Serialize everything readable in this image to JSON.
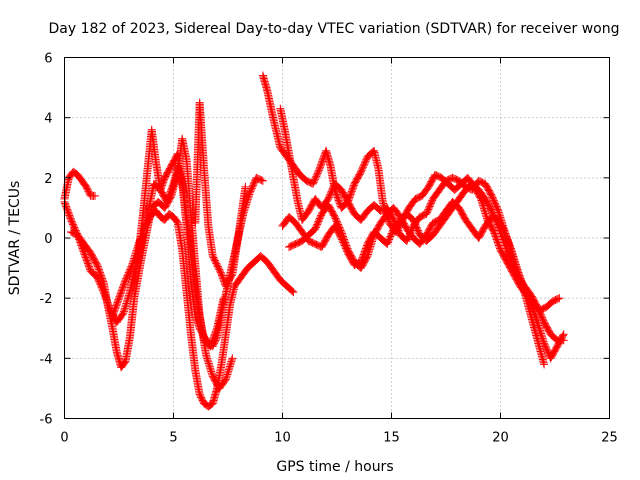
{
  "chart_data": {
    "type": "scatter",
    "title": "Day 182 of 2023, Sidereal Day-to-day VTEC variation (SDTVAR) for receiver wong",
    "xlabel": "GPS time / hours",
    "ylabel": "SDTVAR / TECUs",
    "xlim": [
      0,
      25
    ],
    "ylim": [
      -6,
      6
    ],
    "x_ticks": [
      0,
      5,
      10,
      15,
      20,
      25
    ],
    "y_ticks": [
      -6,
      -4,
      -2,
      0,
      2,
      4,
      6
    ],
    "x_tick_labels": [
      "0",
      "5",
      "10",
      "15",
      "20",
      "25"
    ],
    "y_tick_labels": [
      "-6",
      "-4",
      "-2",
      "0",
      "2",
      "4",
      "6"
    ],
    "grid": true,
    "legend": "none",
    "marker": "+",
    "color": "#ff0000",
    "tracks": [
      {
        "x": [
          0.0,
          0.2,
          0.4,
          0.6,
          0.8,
          1.0,
          1.2,
          1.4
        ],
        "y": [
          1.3,
          2.0,
          2.2,
          2.1,
          1.9,
          1.7,
          1.4,
          1.4
        ]
      },
      {
        "x": [
          0.0,
          0.3,
          0.6,
          0.9,
          1.2,
          1.5,
          1.8,
          2.1,
          2.4,
          2.7,
          3.0,
          3.3,
          3.6,
          3.9,
          4.1,
          4.4,
          4.7,
          5.0,
          5.2,
          5.4,
          5.6,
          5.8,
          6.0,
          6.2,
          6.5,
          6.8,
          7.0,
          7.3,
          7.6,
          7.9,
          8.2,
          8.5,
          8.8,
          9.1
        ],
        "y": [
          1.2,
          0.6,
          0.1,
          -0.5,
          -1.1,
          -1.3,
          -1.8,
          -2.4,
          -2.8,
          -2.5,
          -1.8,
          -0.8,
          0.1,
          1.1,
          1.8,
          1.6,
          1.2,
          1.8,
          2.4,
          1.8,
          0.4,
          -1.5,
          -2.6,
          -3.0,
          -3.4,
          -3.6,
          -3.3,
          -2.2,
          -1.2,
          -0.2,
          0.8,
          1.5,
          2.0,
          1.9
        ]
      },
      {
        "x": [
          0.3,
          0.6,
          0.9,
          1.2,
          1.5,
          1.8,
          2.0,
          2.2,
          2.4,
          2.6,
          2.8,
          3.0,
          3.2,
          3.5,
          3.8,
          4.0,
          4.3,
          4.6,
          4.9,
          5.2,
          5.4,
          5.6,
          5.8,
          6.0,
          6.2,
          6.5,
          6.8,
          7.1,
          7.4,
          7.7
        ],
        "y": [
          0.2,
          0.1,
          -0.2,
          -0.5,
          -0.9,
          -1.5,
          -2.3,
          -3.0,
          -3.8,
          -4.3,
          -4.1,
          -3.3,
          -2.0,
          -0.8,
          0.3,
          1.0,
          1.2,
          1.0,
          1.4,
          2.2,
          3.3,
          2.6,
          0.8,
          -0.9,
          -2.6,
          -3.9,
          -4.6,
          -5.0,
          -4.7,
          -4.0
        ]
      },
      {
        "x": [
          2.2,
          2.5,
          2.8,
          3.1,
          3.4,
          3.7,
          4.0,
          4.2,
          4.4,
          4.6,
          4.8,
          5.0,
          5.2,
          5.4,
          5.6,
          5.8,
          6.0,
          6.2,
          6.4,
          6.6,
          6.8,
          7.0,
          7.2,
          7.4,
          7.6,
          7.8,
          8.1,
          8.4,
          8.7,
          9.0,
          9.3,
          9.6,
          9.9,
          10.2,
          10.5
        ],
        "y": [
          -2.6,
          -2.0,
          -1.4,
          -0.9,
          -0.2,
          0.4,
          0.8,
          0.9,
          0.7,
          0.6,
          0.8,
          0.7,
          0.5,
          -0.4,
          -1.8,
          -3.2,
          -4.4,
          -5.2,
          -5.5,
          -5.6,
          -5.5,
          -5.0,
          -4.2,
          -3.2,
          -2.2,
          -1.6,
          -1.3,
          -1.0,
          -0.8,
          -0.6,
          -0.8,
          -1.1,
          -1.4,
          -1.6,
          -1.8
        ]
      },
      {
        "x": [
          3.2,
          3.4,
          3.6,
          3.8,
          4.0,
          4.2,
          4.4,
          4.6,
          4.9,
          5.2,
          5.5,
          5.8,
          6.1,
          6.4,
          6.7,
          7.0,
          7.3
        ],
        "y": [
          -1.5,
          -0.5,
          0.8,
          2.2,
          3.6,
          2.5,
          1.6,
          2.0,
          2.4,
          2.8,
          1.4,
          -0.6,
          -2.2,
          -3.4,
          -3.6,
          -3.0,
          -2.0
        ]
      },
      {
        "x": [
          6.0,
          6.1,
          6.2,
          6.4,
          6.6,
          6.8,
          7.0,
          7.2,
          7.4,
          7.7,
          8.0,
          8.3
        ],
        "y": [
          0.5,
          2.5,
          4.5,
          2.3,
          0.4,
          -0.6,
          -0.9,
          -1.2,
          -1.6,
          -1.2,
          0.2,
          1.7
        ]
      },
      {
        "x": [
          9.1,
          9.3,
          9.6,
          9.9,
          10.2,
          10.5,
          10.8,
          11.1,
          11.4,
          11.7,
          12.0,
          12.2,
          12.4,
          12.7,
          13.0,
          13.3,
          13.6,
          13.9,
          14.2,
          14.4,
          14.6,
          14.9,
          15.2,
          15.5,
          15.8,
          16.1,
          16.4,
          16.7,
          17.0,
          17.3,
          17.6,
          17.9,
          18.2,
          18.5,
          18.8,
          19.1,
          19.4,
          19.7,
          20.0,
          20.3,
          20.6,
          20.9,
          21.2,
          21.5,
          21.8,
          22.1,
          22.4,
          22.7
        ],
        "y": [
          5.4,
          4.9,
          3.9,
          3.0,
          2.7,
          2.4,
          2.1,
          1.9,
          1.8,
          2.3,
          2.9,
          2.4,
          1.6,
          1.0,
          1.2,
          1.8,
          2.2,
          2.7,
          2.9,
          2.3,
          1.2,
          0.5,
          0.2,
          0.6,
          1.0,
          1.3,
          1.4,
          1.7,
          2.1,
          2.0,
          1.8,
          1.6,
          1.8,
          2.0,
          1.7,
          1.3,
          0.6,
          0.2,
          -0.4,
          -0.8,
          -1.2,
          -1.6,
          -1.9,
          -2.2,
          -2.4,
          -2.3,
          -2.1,
          -2.0
        ]
      },
      {
        "x": [
          9.9,
          10.1,
          10.3,
          10.5,
          10.7,
          10.9,
          11.2,
          11.5,
          11.8,
          12.1,
          12.4,
          12.7,
          13.0,
          13.3,
          13.6,
          13.9,
          14.2,
          14.5,
          14.8,
          15.1,
          15.4,
          15.7,
          16.0,
          16.3,
          16.6,
          16.9,
          17.2,
          17.5,
          17.8,
          18.1,
          18.4,
          18.7,
          19.0,
          19.3,
          19.6,
          19.9,
          20.2,
          20.5,
          20.8,
          21.1,
          21.4,
          21.7,
          22.0
        ],
        "y": [
          4.3,
          3.6,
          2.8,
          2.0,
          1.2,
          0.6,
          0.9,
          1.3,
          1.0,
          1.3,
          1.8,
          1.6,
          1.2,
          0.8,
          0.6,
          0.9,
          1.1,
          0.9,
          1.0,
          0.6,
          0.1,
          -0.1,
          0.4,
          0.7,
          0.8,
          1.3,
          1.6,
          1.9,
          2.0,
          1.9,
          1.7,
          1.6,
          1.9,
          1.8,
          1.4,
          0.9,
          0.2,
          -0.5,
          -1.2,
          -1.8,
          -2.6,
          -3.4,
          -4.2
        ]
      },
      {
        "x": [
          10.0,
          10.3,
          10.6,
          10.9,
          11.2,
          11.5,
          11.8,
          12.1,
          12.4,
          12.7,
          13.0,
          13.3,
          13.6,
          13.9,
          14.2,
          14.5,
          14.8,
          15.1,
          15.4,
          15.7,
          16.0,
          16.3,
          16.6,
          16.9,
          17.2,
          17.5,
          17.8,
          18.1,
          18.4,
          18.7,
          19.0,
          19.3,
          19.6,
          19.9,
          20.2,
          20.5,
          20.8,
          21.1,
          21.4,
          21.7,
          22.0,
          22.3,
          22.6,
          22.9
        ],
        "y": [
          0.4,
          0.7,
          0.5,
          0.2,
          -0.1,
          -0.2,
          -0.3,
          0.1,
          0.4,
          0.0,
          -0.5,
          -0.9,
          -0.8,
          -0.2,
          0.2,
          0.0,
          -0.2,
          0.3,
          0.6,
          0.8,
          0.6,
          0.1,
          -0.1,
          0.1,
          0.4,
          0.7,
          1.0,
          1.3,
          1.6,
          1.8,
          1.6,
          1.3,
          0.9,
          0.4,
          -0.2,
          -0.8,
          -1.3,
          -1.6,
          -1.9,
          -2.3,
          -2.8,
          -3.2,
          -3.4,
          -3.4
        ]
      },
      {
        "x": [
          10.3,
          10.6,
          10.9,
          11.2,
          11.5,
          11.8,
          12.1,
          12.4,
          12.7,
          13.0,
          13.3,
          13.6,
          13.9,
          14.2,
          14.5,
          14.8,
          15.1,
          15.4,
          15.7,
          16.0,
          16.3,
          16.6,
          16.9,
          17.2,
          17.5,
          17.8,
          18.1,
          18.4,
          18.7,
          19.0,
          19.3,
          19.6,
          19.9,
          20.2,
          20.5,
          20.8,
          21.1,
          21.4,
          21.7,
          22.0,
          22.3,
          22.6,
          22.9
        ],
        "y": [
          -0.3,
          -0.2,
          -0.1,
          0.1,
          0.3,
          0.8,
          1.1,
          0.7,
          0.2,
          -0.4,
          -0.8,
          -1.0,
          -0.6,
          0.1,
          0.5,
          0.8,
          1.0,
          0.7,
          0.3,
          0.0,
          -0.2,
          0.1,
          0.5,
          0.6,
          0.9,
          1.2,
          1.0,
          0.6,
          0.3,
          0.0,
          0.4,
          0.7,
          0.6,
          0.2,
          -0.4,
          -1.1,
          -1.7,
          -2.2,
          -2.8,
          -3.5,
          -4.0,
          -3.6,
          -3.2
        ]
      }
    ]
  }
}
